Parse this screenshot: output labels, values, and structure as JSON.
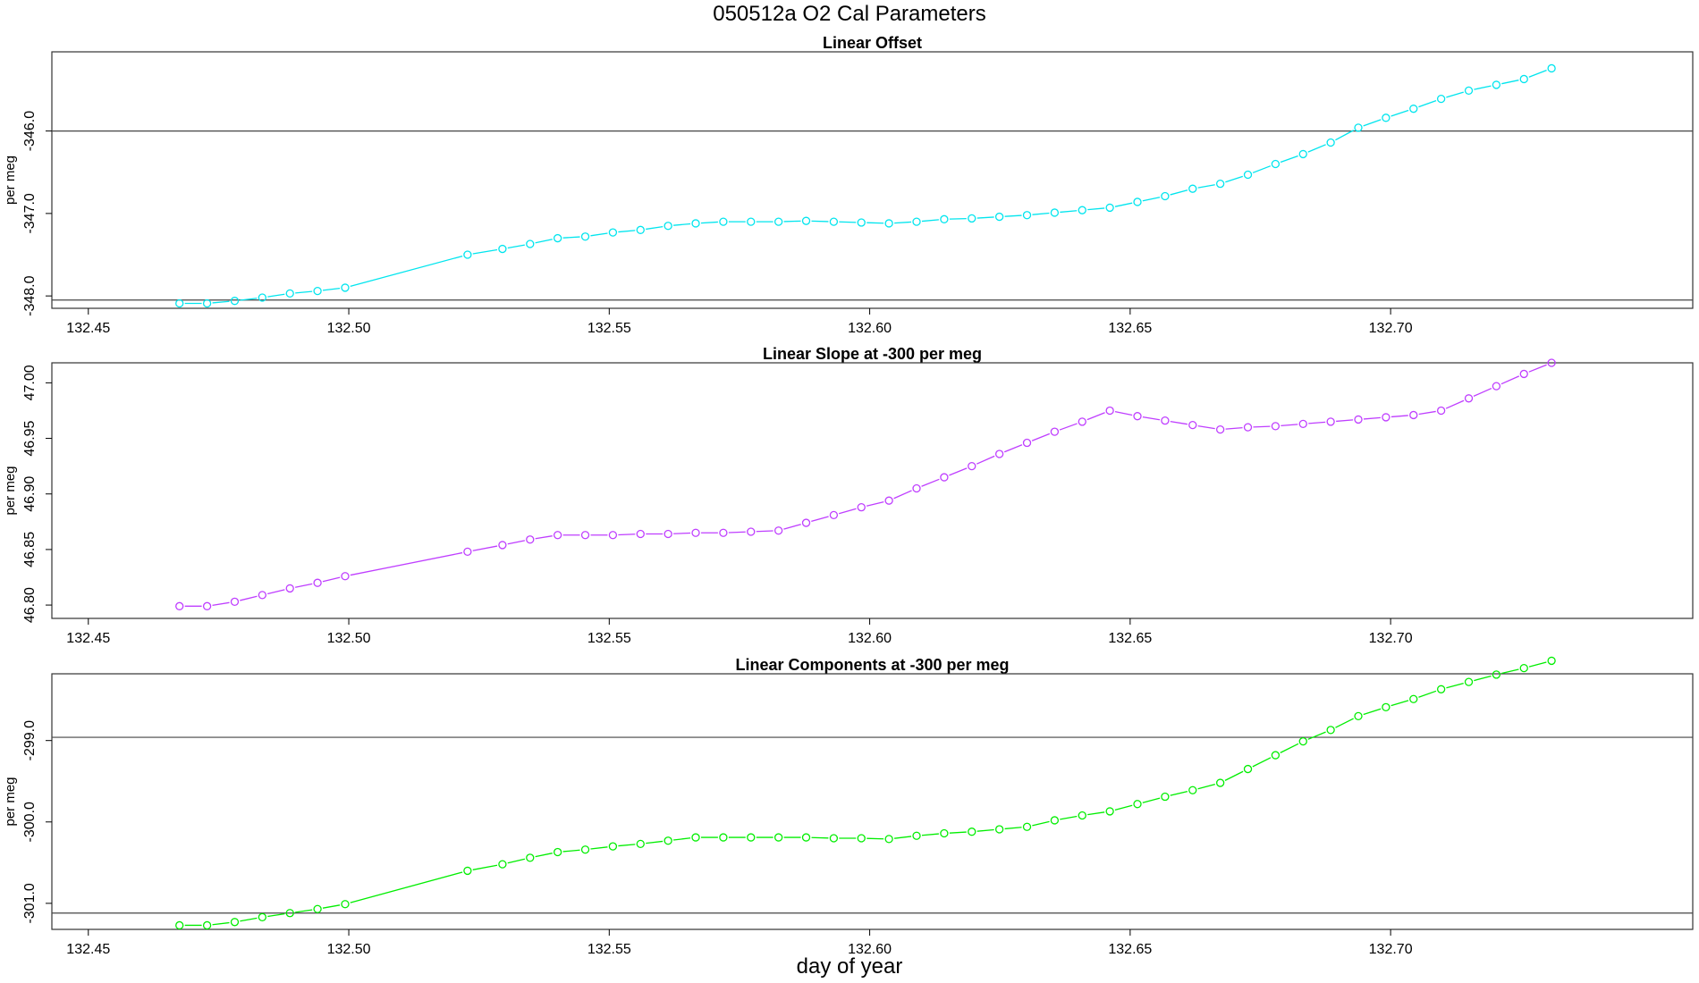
{
  "title": "050512a   O2 Cal Parameters",
  "xlabel": "day of year",
  "chart_data": [
    {
      "type": "line",
      "title": "Linear Offset",
      "ylabel": "per meg",
      "color": "#00e5ee",
      "xlim": [
        132.443,
        132.758
      ],
      "ylim": [
        -348.15,
        -345.04
      ],
      "xticks": [
        132.45,
        132.5,
        132.55,
        132.6,
        132.65,
        132.7
      ],
      "xtick_labels": [
        "132.45",
        "132.50",
        "132.55",
        "132.60",
        "132.65",
        "132.70"
      ],
      "yticks": [
        -346.0,
        -347.0,
        -348.0
      ],
      "ytick_labels": [
        "-346.0",
        "-347.0",
        "-348.0"
      ],
      "hlines": [
        -346.0,
        -348.05
      ],
      "x": [
        132.4675,
        132.4728,
        132.4781,
        132.4834,
        132.4887,
        132.494,
        132.4993,
        132.5228,
        132.5295,
        132.5348,
        132.5401,
        132.5454,
        132.5507,
        132.556,
        132.5613,
        132.5666,
        132.5719,
        132.5772,
        132.5825,
        132.5878,
        132.5931,
        132.5984,
        132.6037,
        132.609,
        132.6143,
        132.6196,
        132.6249,
        132.6302,
        132.6355,
        132.6408,
        132.6461,
        132.6514,
        132.6567,
        132.662,
        132.6673,
        132.6726,
        132.6779,
        132.6832,
        132.6885,
        132.6938,
        132.6991,
        132.7044,
        132.7097,
        132.715,
        132.7203,
        132.7256,
        132.7309
      ],
      "y": [
        -348.09,
        -348.09,
        -348.06,
        -348.02,
        -347.97,
        -347.94,
        -347.9,
        -347.5,
        -347.43,
        -347.37,
        -347.3,
        -347.28,
        -347.23,
        -347.2,
        -347.15,
        -347.12,
        -347.1,
        -347.1,
        -347.1,
        -347.09,
        -347.1,
        -347.11,
        -347.12,
        -347.1,
        -347.07,
        -347.06,
        -347.04,
        -347.02,
        -346.99,
        -346.96,
        -346.93,
        -346.86,
        -346.79,
        -346.7,
        -346.64,
        -346.53,
        -346.4,
        -346.28,
        -346.14,
        -345.96,
        -345.84,
        -345.73,
        -345.61,
        -345.51,
        -345.44,
        -345.37,
        -345.24
      ]
    },
    {
      "type": "line",
      "title": "Linear Slope at -300 per meg",
      "ylabel": "per meg",
      "color": "#bf3eff",
      "xlim": [
        132.443,
        132.758
      ],
      "ylim": [
        46.788,
        47.018
      ],
      "xticks": [
        132.45,
        132.5,
        132.55,
        132.6,
        132.65,
        132.7
      ],
      "xtick_labels": [
        "132.45",
        "132.50",
        "132.55",
        "132.60",
        "132.65",
        "132.70"
      ],
      "yticks": [
        46.8,
        46.85,
        46.9,
        46.95,
        47.0
      ],
      "ytick_labels": [
        "46.80",
        "46.85",
        "46.90",
        "46.95",
        "47.00"
      ],
      "hlines": [],
      "x": [
        132.4675,
        132.4728,
        132.4781,
        132.4834,
        132.4887,
        132.494,
        132.4993,
        132.5228,
        132.5295,
        132.5348,
        132.5401,
        132.5454,
        132.5507,
        132.556,
        132.5613,
        132.5666,
        132.5719,
        132.5772,
        132.5825,
        132.5878,
        132.5931,
        132.5984,
        132.6037,
        132.609,
        132.6143,
        132.6196,
        132.6249,
        132.6302,
        132.6355,
        132.6408,
        132.6461,
        132.6514,
        132.6567,
        132.662,
        132.6673,
        132.6726,
        132.6779,
        132.6832,
        132.6885,
        132.6938,
        132.6991,
        132.7044,
        132.7097,
        132.715,
        132.7203,
        132.7256,
        132.7309
      ],
      "y": [
        46.799,
        46.799,
        46.803,
        46.809,
        46.815,
        46.82,
        46.826,
        46.848,
        46.854,
        46.859,
        46.863,
        46.863,
        46.863,
        46.864,
        46.864,
        46.865,
        46.865,
        46.866,
        46.867,
        46.874,
        46.881,
        46.888,
        46.894,
        46.905,
        46.915,
        46.925,
        46.936,
        46.946,
        46.956,
        46.965,
        46.975,
        46.97,
        46.966,
        46.962,
        46.958,
        46.96,
        46.961,
        46.963,
        46.965,
        46.967,
        46.969,
        46.971,
        46.975,
        46.986,
        46.997,
        47.008,
        47.018
      ]
    },
    {
      "type": "line",
      "title": "Linear Components at -300 per meg",
      "ylabel": "per meg",
      "color": "#00ee00",
      "xlim": [
        132.443,
        132.758
      ],
      "ylim": [
        -301.32,
        -298.18
      ],
      "xticks": [
        132.45,
        132.5,
        132.55,
        132.6,
        132.65,
        132.7
      ],
      "xtick_labels": [
        "132.45",
        "132.50",
        "132.55",
        "132.60",
        "132.65",
        "132.70"
      ],
      "yticks": [
        -299.0,
        -300.0,
        -301.0
      ],
      "ytick_labels": [
        "-299.0",
        "-300.0",
        "-301.0"
      ],
      "hlines": [
        -298.96,
        -301.12
      ],
      "x": [
        132.4675,
        132.4728,
        132.4781,
        132.4834,
        132.4887,
        132.494,
        132.4993,
        132.5228,
        132.5295,
        132.5348,
        132.5401,
        132.5454,
        132.5507,
        132.556,
        132.5613,
        132.5666,
        132.5719,
        132.5772,
        132.5825,
        132.5878,
        132.5931,
        132.5984,
        132.6037,
        132.609,
        132.6143,
        132.6196,
        132.6249,
        132.6302,
        132.6355,
        132.6408,
        132.6461,
        132.6514,
        132.6567,
        132.662,
        132.6673,
        132.6726,
        132.6779,
        132.6832,
        132.6885,
        132.6938,
        132.6991,
        132.7044,
        132.7097,
        132.715,
        132.7203,
        132.7256,
        132.7309
      ],
      "y": [
        -301.27,
        -301.27,
        -301.23,
        -301.17,
        -301.12,
        -301.07,
        -301.01,
        -300.6,
        -300.52,
        -300.44,
        -300.37,
        -300.34,
        -300.3,
        -300.27,
        -300.23,
        -300.19,
        -300.19,
        -300.19,
        -300.19,
        -300.19,
        -300.2,
        -300.2,
        -300.21,
        -300.17,
        -300.14,
        -300.12,
        -300.09,
        -300.06,
        -299.98,
        -299.92,
        -299.87,
        -299.78,
        -299.69,
        -299.61,
        -299.52,
        -299.35,
        -299.18,
        -299.01,
        -298.87,
        -298.7,
        -298.59,
        -298.49,
        -298.37,
        -298.28,
        -298.19,
        -298.11,
        -298.02
      ]
    }
  ]
}
